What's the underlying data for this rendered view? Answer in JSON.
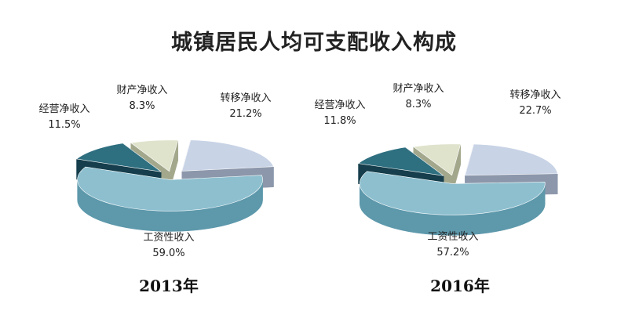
{
  "title": "城镇居民人均可支配收入构成",
  "chart_data": [
    {
      "type": "pie",
      "year_label": "2013年",
      "slices": [
        {
          "name": "转移净收入",
          "value": 21.2,
          "value_label": "21.2%",
          "color": "#c8d3e6",
          "side": "#8c97ab"
        },
        {
          "name": "工资性收入",
          "value": 59.0,
          "value_label": "59.0%",
          "color": "#8dbfcf",
          "side": "#5d98ab"
        },
        {
          "name": "经营净收入",
          "value": 11.5,
          "value_label": "11.5%",
          "color": "#2e6f80",
          "side": "#163e4c"
        },
        {
          "name": "财产净收入",
          "value": 8.3,
          "value_label": "8.3%",
          "color": "#dfe3cc",
          "side": "#a3a88c"
        }
      ]
    },
    {
      "type": "pie",
      "year_label": "2016年",
      "slices": [
        {
          "name": "转移净收入",
          "value": 22.7,
          "value_label": "22.7%",
          "color": "#c8d3e6",
          "side": "#8c97ab"
        },
        {
          "name": "工资性收入",
          "value": 57.2,
          "value_label": "57.2%",
          "color": "#8dbfcf",
          "side": "#5d98ab"
        },
        {
          "name": "经营净收入",
          "value": 11.8,
          "value_label": "11.8%",
          "color": "#2e6f80",
          "side": "#163e4c"
        },
        {
          "name": "财产净收入",
          "value": 8.3,
          "value_label": "8.3%",
          "color": "#dfe3cc",
          "side": "#a3a88c"
        }
      ]
    }
  ]
}
